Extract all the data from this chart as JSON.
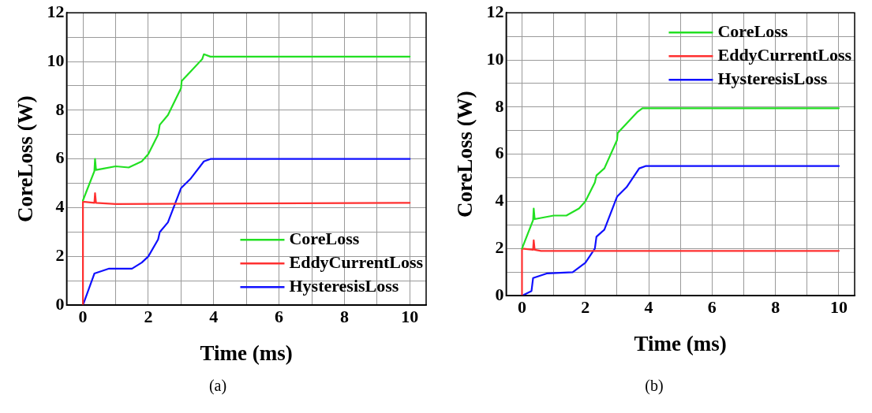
{
  "chart_data": [
    {
      "type": "line",
      "xlabel": "Time (ms)",
      "ylabel": "CoreLoss (W)",
      "annotations": [
        "(a)"
      ],
      "xlim": [
        -0.5,
        10.5
      ],
      "xticks": [
        0,
        {
          "value": 1,
          "label": null
        },
        2,
        {
          "value": 3,
          "label": null
        },
        4,
        {
          "value": 5,
          "label": null
        },
        6,
        {
          "value": 7,
          "label": null
        },
        8,
        {
          "value": 9,
          "label": null
        },
        10
      ],
      "ylim": [
        0,
        12
      ],
      "yticks": [
        0,
        {
          "value": 1,
          "label": null
        },
        2,
        {
          "value": 3,
          "label": null
        },
        4,
        {
          "value": 5,
          "label": null
        },
        6,
        {
          "value": 7,
          "label": null
        },
        8,
        {
          "value": 9,
          "label": null
        },
        10,
        {
          "value": 11,
          "label": null
        },
        12
      ],
      "grid": true,
      "legend": "bottom right",
      "marker": "none",
      "line_style": "solid",
      "series": [
        {
          "name": "CoreLoss",
          "color": "#22e022",
          "x": [
            0,
            0.35,
            0.37,
            0.4,
            0.6,
            1,
            1.4,
            1.8,
            2,
            2.3,
            2.35,
            2.6,
            3,
            3.02,
            3.3,
            3.65,
            3.7,
            3.9,
            5,
            10
          ],
          "values": [
            4.3,
            5.5,
            6.0,
            5.55,
            5.6,
            5.7,
            5.65,
            5.9,
            6.2,
            7.0,
            7.4,
            7.8,
            8.9,
            9.2,
            9.6,
            10.1,
            10.3,
            10.2,
            10.2,
            10.2
          ]
        },
        {
          "name": "EddyCurrentLoss",
          "color": "#ff3030",
          "x": [
            0,
            0,
            0.35,
            0.37,
            0.4,
            1,
            10
          ],
          "values": [
            0,
            4.25,
            4.2,
            4.6,
            4.2,
            4.15,
            4.2
          ]
        },
        {
          "name": "HysteresisLoss",
          "color": "#1010ff",
          "x": [
            0,
            0.35,
            0.8,
            1.5,
            1.8,
            2,
            2.3,
            2.35,
            2.6,
            3,
            3.3,
            3.7,
            3.9,
            10
          ],
          "values": [
            0,
            1.3,
            1.5,
            1.5,
            1.75,
            2.0,
            2.7,
            3.0,
            3.4,
            4.8,
            5.2,
            5.9,
            6.0,
            6.0
          ]
        }
      ]
    },
    {
      "type": "line",
      "xlabel": "Time (ms)",
      "ylabel": "CoreLoss (W)",
      "annotations": [
        "(b)"
      ],
      "xlim": [
        -0.5,
        10.5
      ],
      "xticks": [
        0,
        {
          "value": 1,
          "label": null
        },
        2,
        {
          "value": 3,
          "label": null
        },
        4,
        {
          "value": 5,
          "label": null
        },
        6,
        {
          "value": 7,
          "label": null
        },
        8,
        {
          "value": 9,
          "label": null
        },
        10
      ],
      "ylim": [
        0,
        12
      ],
      "yticks": [
        0,
        {
          "value": 1,
          "label": null
        },
        2,
        {
          "value": 3,
          "label": null
        },
        4,
        {
          "value": 5,
          "label": null
        },
        6,
        {
          "value": 7,
          "label": null
        },
        8,
        {
          "value": 9,
          "label": null
        },
        10,
        {
          "value": 11,
          "label": null
        },
        12
      ],
      "grid": true,
      "legend": "top right",
      "marker": "none",
      "line_style": "solid",
      "series": [
        {
          "name": "CoreLoss",
          "color": "#22e022",
          "x": [
            0,
            0.35,
            0.37,
            0.4,
            1,
            1.4,
            1.8,
            2,
            2.3,
            2.35,
            2.6,
            3,
            3.02,
            3.3,
            3.65,
            3.8,
            10
          ],
          "values": [
            2.0,
            3.2,
            3.7,
            3.25,
            3.4,
            3.4,
            3.7,
            4.0,
            4.8,
            5.1,
            5.4,
            6.6,
            6.9,
            7.3,
            7.8,
            7.95,
            7.95
          ]
        },
        {
          "name": "EddyCurrentLoss",
          "color": "#ff3030",
          "x": [
            0,
            0,
            0.35,
            0.37,
            0.4,
            0.6,
            10
          ],
          "values": [
            0,
            2.0,
            1.95,
            2.35,
            1.95,
            1.9,
            1.9
          ]
        },
        {
          "name": "HysteresisLoss",
          "color": "#1010ff",
          "x": [
            0,
            0.3,
            0.35,
            0.8,
            1.6,
            1.8,
            2,
            2.3,
            2.35,
            2.6,
            3,
            3.3,
            3.7,
            3.9,
            10
          ],
          "values": [
            0,
            0.2,
            0.75,
            0.95,
            1.0,
            1.2,
            1.4,
            2.0,
            2.5,
            2.8,
            4.2,
            4.6,
            5.4,
            5.5,
            5.5
          ]
        }
      ]
    }
  ]
}
